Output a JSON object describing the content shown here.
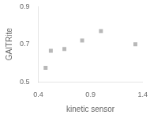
{
  "chart_data": {
    "type": "scatter",
    "x": [
      0.47,
      0.52,
      0.65,
      0.82,
      1.0,
      1.33
    ],
    "values": [
      0.575,
      0.665,
      0.675,
      0.72,
      0.77,
      0.7
    ],
    "color": "#b8b8b8",
    "marker": "square",
    "xlim": [
      0.4,
      1.4
    ],
    "ylim": [
      0.5,
      0.9
    ],
    "xticks": [
      0.4,
      0.9,
      1.4
    ],
    "yticks": [
      0.5,
      0.7,
      0.9
    ],
    "xlabel": "kinetic sensor",
    "ylabel": "GAITRite",
    "grid": false
  }
}
